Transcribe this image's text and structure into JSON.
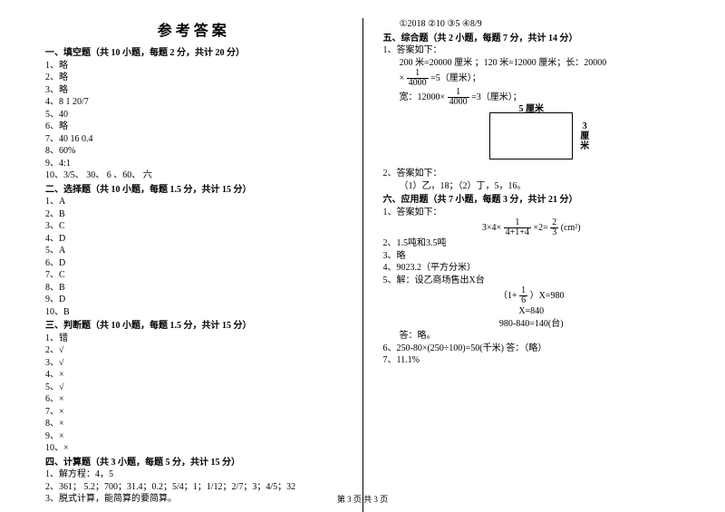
{
  "title": "参考答案",
  "footer": "第 3 页  共 3 页",
  "left": {
    "sec1_h": "一、填空题（共 10 小题，每题 2 分，共计 20 分）",
    "s1_1": "1、略",
    "s1_2": "2、略",
    "s1_3": "3、略",
    "s1_4": "4、8   1   20/7",
    "s1_5": "5、40",
    "s1_6": "6、略",
    "s1_7": "7、40  16     0.4",
    "s1_8": "8、60%",
    "s1_9": "9、4:1",
    "s1_10": "10、3/5、 30、 6 、60、 六",
    "sec2_h": "二、选择题（共 10 小题，每题 1.5 分，共计 15 分）",
    "s2_1": "1、A",
    "s2_2": "2、B",
    "s2_3": "3、C",
    "s2_4": "4、D",
    "s2_5": "5、A",
    "s2_6": "6、D",
    "s2_7": "7、C",
    "s2_8": "8、B",
    "s2_9": "9、D",
    "s2_10": "10、B",
    "sec3_h": "三、判断题（共 10 小题，每题 1.5 分，共计 15 分）",
    "s3_1": "1、错",
    "s3_2": "2、√",
    "s3_3": "3、√",
    "s3_4": "4、×",
    "s3_5": "5、√",
    "s3_6": "6、×",
    "s3_7": "7、×",
    "s3_8": "8、×",
    "s3_9": "9、×",
    "s3_10": "10、×",
    "sec4_h": "四、计算题（共 3 小题，每题 5 分，共计 15 分）",
    "s4_1": "1、解方程：4，5",
    "s4_2": "2、361； 5.2；700；31.4；0.2；5/4；1；1/12；2/7；3；4/5；32",
    "s4_3": "3、脱式计算，能简算的要简算。"
  },
  "right": {
    "topline": "①2018     ②10     ③5     ④8/9",
    "sec5_h": "五、综合题（共 2 小题，每题 7 分，共计 14 分）",
    "s5_1": "1、答案如下：",
    "s5_1a": "200 米=20000 厘米 ；120 米=12000 厘米；长：20000",
    "s5_1b_pre": "×",
    "s5_1b_num": "1",
    "s5_1b_den": "4000",
    "s5_1b_post": "=5（厘米）；",
    "s5_1c_pre": "宽：12000×",
    "s5_1c_num": "1",
    "s5_1c_den": "4000",
    "s5_1c_post": "=3（厘米）；",
    "rect_top": "5 厘米",
    "rect_right1": "3",
    "rect_right2": "厘",
    "rect_right3": "米",
    "s5_2": "2、答案如下：",
    "s5_2a": "（1）乙，18；（2）丁，5，16。",
    "sec6_h": "六、应用题（共 7 小题，每题 3 分，共计 21 分）",
    "s6_1": "1、答案如下：",
    "s6_1_eq_pre": "3×4×",
    "s6_1_eq_num": "1",
    "s6_1_eq_den": "4+1+4",
    "s6_1_eq_mid": "×2=",
    "s6_1_eq_rnum": "2",
    "s6_1_eq_rden": "3",
    "s6_1_eq_post": "(cm²)",
    "s6_2": "2、1.5吨和3.5吨",
    "s6_3": "3、略",
    "s6_4": "4、9023.2（平方分米）",
    "s6_5": "5、解：设乙商场售出X台",
    "s6_5a_pre": "（1+",
    "s6_5a_num": "1",
    "s6_5a_den": "6",
    "s6_5a_post": "）X=980",
    "s6_5b": "X=840",
    "s6_5c": "980-840=140(台)",
    "s6_5d": "答：略。",
    "s6_6": "6、250-80×(250÷100)=50(千米) 答：（略）",
    "s6_7": "7、11.1%"
  }
}
